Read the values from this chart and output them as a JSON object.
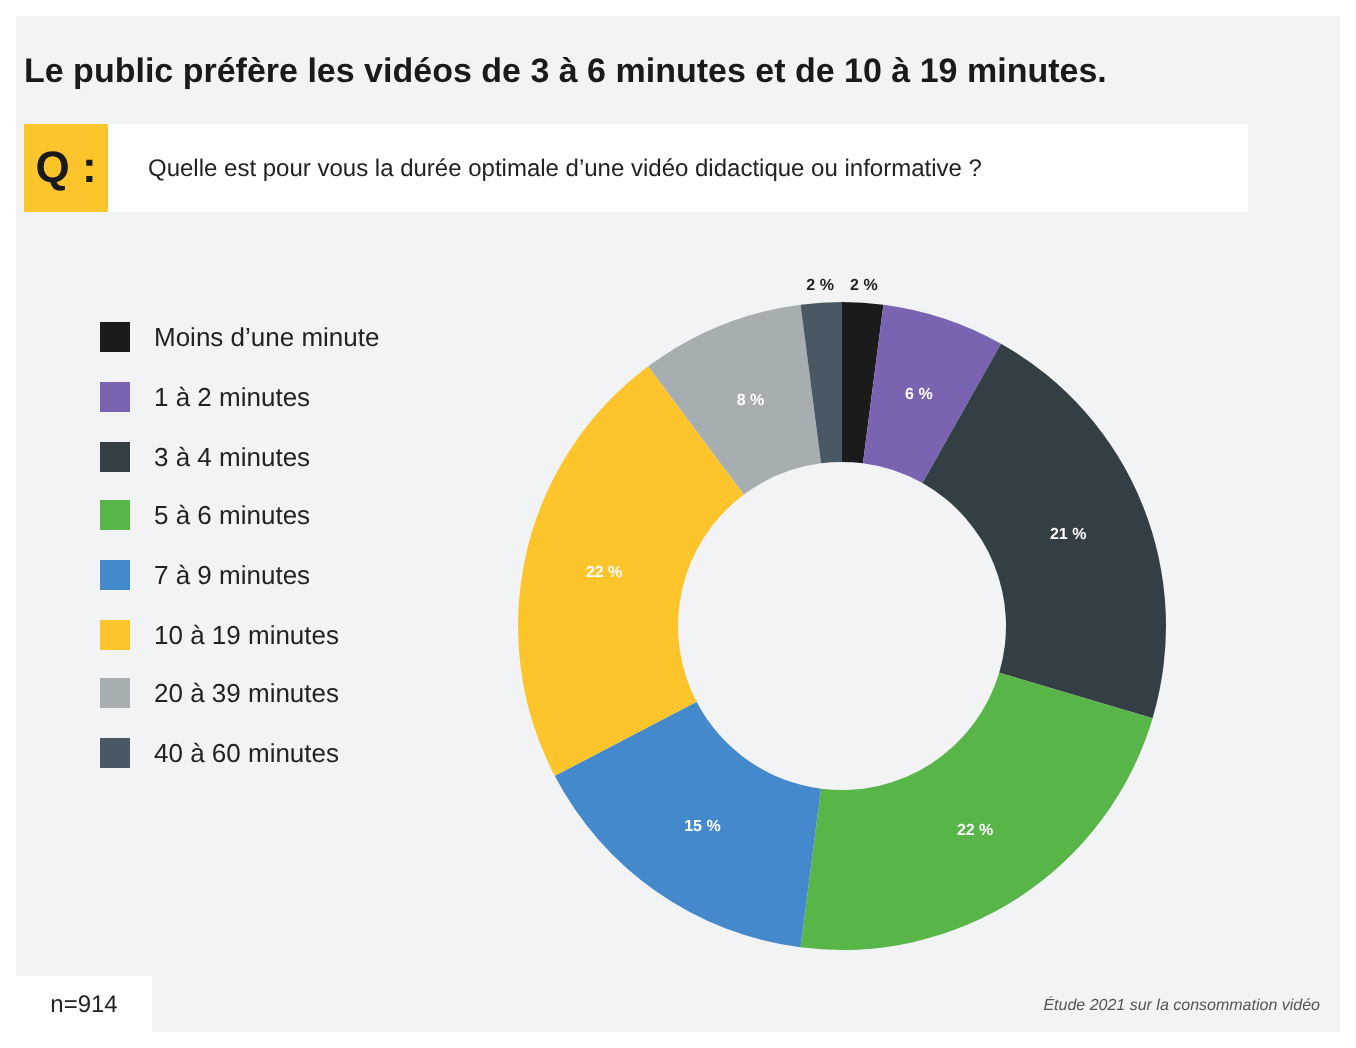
{
  "chart_data": {
    "type": "donut",
    "title": "Le public préfère les vidéos de 3 à 6 minutes et de 10 à 19 minutes.",
    "subtitle": "Quelle est pour vous la durée optimale d’une vidéo didactique ou informative ?",
    "categories": [
      "Moins d’une minute",
      "1 à 2 minutes",
      "3 à 4 minutes",
      "5 à 6 minutes",
      "7 à 9 minutes",
      "10 à 19 minutes",
      "20 à 39 minutes",
      "40 à 60 minutes"
    ],
    "values": [
      2,
      6,
      21,
      22,
      15,
      22,
      8,
      2
    ],
    "value_labels": [
      "2 %",
      "6 %",
      "21 %",
      "22 %",
      "15 %",
      "22 %",
      "8 %",
      "2 %"
    ],
    "colors": [
      "#1b1b1b",
      "#7a64b1",
      "#333f44",
      "#58b547",
      "#4489cb",
      "#fdc42c",
      "#a6aeb2",
      "#4a5863"
    ],
    "legend": "left",
    "annotations": [
      "Q :",
      "n=914",
      "Étude 2021 sur la consommation vidéo"
    ]
  }
}
